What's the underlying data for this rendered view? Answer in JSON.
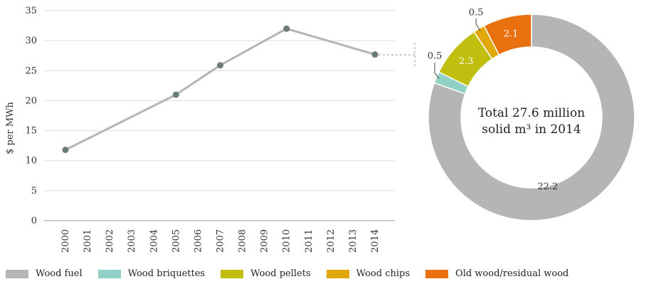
{
  "chart_data": [
    {
      "type": "line",
      "ylabel": "$ per MWh",
      "ylim": [
        0,
        35
      ],
      "yticks": [
        0,
        5,
        10,
        15,
        20,
        25,
        30,
        35
      ],
      "categories": [
        "2000",
        "2001",
        "2002",
        "2003",
        "2004",
        "2005",
        "2006",
        "2007",
        "2008",
        "2009",
        "2010",
        "2011",
        "2012",
        "2013",
        "2014"
      ],
      "points": [
        {
          "x": "2000",
          "y": 11.8
        },
        {
          "x": "2005",
          "y": 21.0
        },
        {
          "x": "2007",
          "y": 25.9
        },
        {
          "x": "2010",
          "y": 32.0
        },
        {
          "x": "2014",
          "y": 27.7
        }
      ],
      "grid": true,
      "colors": {
        "line": "#b3b6b5",
        "marker": "#6b7b7b"
      }
    },
    {
      "type": "pie",
      "center_text": [
        "Total 27.6 million",
        "solid m³ in 2014"
      ],
      "slices": [
        {
          "name": "Wood fuel",
          "value": 22.2,
          "label": "22.2",
          "color": "#b3b6b5"
        },
        {
          "name": "Wood briquettes",
          "value": 0.5,
          "label": "0.5",
          "color": "#8fd1c5"
        },
        {
          "name": "Wood pellets",
          "value": 2.3,
          "label": "2.3",
          "color": "#c0bf10"
        },
        {
          "name": "Wood chips",
          "value": 0.5,
          "label": "0.5",
          "color": "#e0a80c"
        },
        {
          "name": "Old wood/residual wood",
          "value": 2.1,
          "label": "2.1",
          "color": "#e8700f"
        }
      ],
      "legend_position": "bottom"
    }
  ]
}
